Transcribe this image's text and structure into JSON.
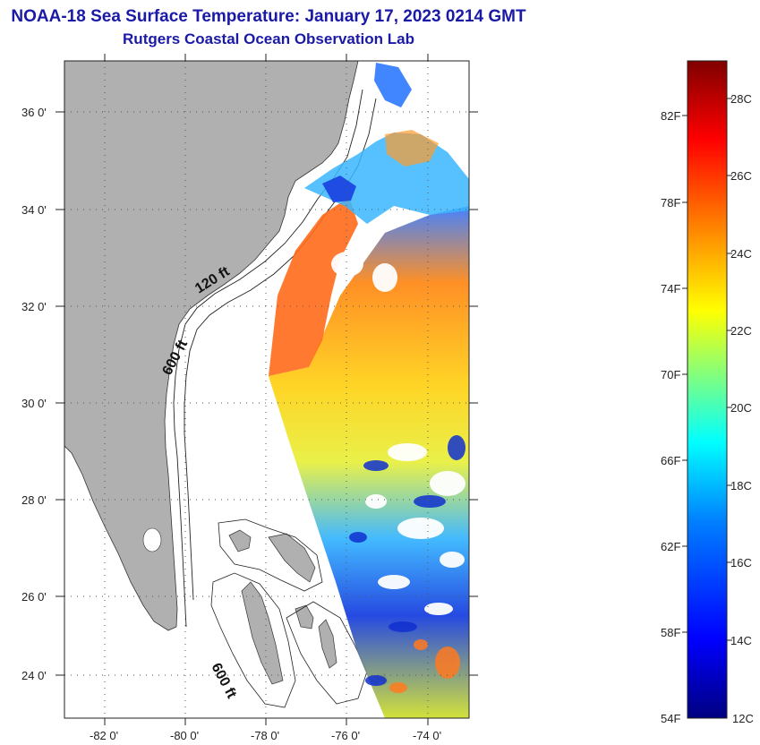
{
  "header": {
    "title": "NOAA-18 Sea Surface Temperature:  January 17, 2023 0214 GMT",
    "subtitle": "Rutgers Coastal Ocean Observation Lab"
  },
  "map": {
    "lat_ticks": [
      "36 0'",
      "34 0'",
      "32 0'",
      "30 0'",
      "28 0'",
      "26 0'",
      "24 0'"
    ],
    "lon_ticks": [
      "-82 0'",
      "-80 0'",
      "-78 0'",
      "-76 0'",
      "-74 0'"
    ],
    "lat_range": [
      23,
      37
    ],
    "lon_range": [
      -83,
      -73
    ],
    "contour_labels": [
      "120 ft",
      "600 ft",
      "600 ft"
    ],
    "land_color": "#b0b0b0",
    "ocean_color": "#ffffff"
  },
  "colorbar": {
    "fahrenheit_labels": [
      "82F",
      "78F",
      "74F",
      "70F",
      "66F",
      "62F",
      "58F",
      "54F"
    ],
    "celsius_labels": [
      "28C",
      "26C",
      "24C",
      "22C",
      "20C",
      "18C",
      "16C",
      "14C",
      "12C"
    ],
    "min_c": 12,
    "max_c": 29.5,
    "stops": [
      "#000080",
      "#0000ff",
      "#0080ff",
      "#00ffff",
      "#80ff80",
      "#ffff00",
      "#ff8000",
      "#ff0000",
      "#800000"
    ]
  }
}
